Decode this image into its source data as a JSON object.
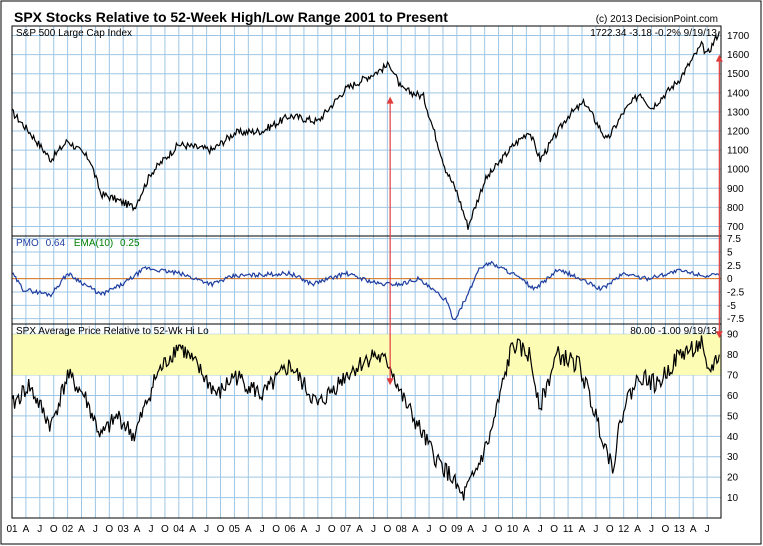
{
  "header": {
    "title": "SPX Stocks Relative to 52-Week High/Low Range 2001 to Present",
    "copyright": "(c) 2013 DecisionPoint.com"
  },
  "colors": {
    "background": "#ffffff",
    "grid": "#9ec6e4",
    "price_line": "#000000",
    "pmo_line": "#1f3fa0",
    "pmo_zero": "#e07a1a",
    "ema_label": "#008000",
    "band": "#fcfcb4",
    "arrow": "#e03c3c"
  },
  "chart_data": [
    {
      "type": "line",
      "title": "S&P 500 Large Cap Index",
      "readout": "1722.34  -3.18  -0.2%  9/19/13",
      "ylim": [
        650,
        1750
      ],
      "yticks": [
        700,
        800,
        900,
        1000,
        1100,
        1200,
        1300,
        1400,
        1500,
        1600,
        1700
      ],
      "x": [
        2001.0,
        2001.3,
        2001.7,
        2002.0,
        2002.4,
        2002.6,
        2002.8,
        2003.2,
        2003.5,
        2004.0,
        2004.6,
        2005.0,
        2005.5,
        2006.0,
        2006.5,
        2007.0,
        2007.5,
        2007.8,
        2008.0,
        2008.4,
        2008.8,
        2009.0,
        2009.2,
        2009.5,
        2010.0,
        2010.3,
        2010.5,
        2011.0,
        2011.3,
        2011.7,
        2012.0,
        2012.3,
        2012.5,
        2013.0,
        2013.4,
        2013.5,
        2013.72
      ],
      "values": [
        1300,
        1200,
        1050,
        1150,
        1050,
        870,
        850,
        800,
        980,
        1130,
        1100,
        1190,
        1200,
        1280,
        1250,
        1420,
        1500,
        1550,
        1420,
        1380,
        1000,
        880,
        700,
        940,
        1120,
        1200,
        1050,
        1280,
        1350,
        1150,
        1300,
        1400,
        1320,
        1470,
        1650,
        1600,
        1722
      ]
    },
    {
      "type": "line",
      "title": "PMO",
      "pmo_label": "PMO",
      "pmo_value": "0.64",
      "ema_label": "EMA(10)",
      "ema_value": "0.25",
      "ylim": [
        -8.5,
        8
      ],
      "yticks": [
        7.5,
        5,
        2.5,
        0,
        -2.5,
        -5,
        -7.5
      ],
      "ytick_labels": [
        "7.5",
        "5",
        "2.5",
        "0",
        "-2.5",
        "-5",
        "-7.5"
      ],
      "x": [
        2001.0,
        2001.2,
        2001.7,
        2002.0,
        2002.3,
        2002.6,
        2003.0,
        2003.4,
        2004.0,
        2004.6,
        2005.0,
        2006.0,
        2006.4,
        2007.0,
        2007.6,
        2008.0,
        2008.3,
        2008.8,
        2008.95,
        2009.2,
        2009.4,
        2009.6,
        2010.0,
        2010.4,
        2010.8,
        2011.0,
        2011.6,
        2012.0,
        2012.4,
        2013.0,
        2013.5,
        2013.72
      ],
      "values": [
        1,
        -2,
        -3,
        1,
        -1,
        -3,
        -1,
        2,
        1,
        -1,
        0.5,
        1,
        -1,
        1,
        -1,
        -1,
        0,
        -4,
        -7.8,
        -3,
        2,
        3,
        1,
        -2,
        1.5,
        1,
        -2,
        1,
        0,
        1.5,
        0.5,
        0.64
      ]
    },
    {
      "type": "line",
      "title": "SPX Average Price Relative to 52-Wk Hi Lo",
      "readout": "80.00  -1.00  9/19/13",
      "ylim": [
        0,
        95
      ],
      "yticks": [
        10,
        20,
        30,
        40,
        50,
        60,
        70,
        80,
        90
      ],
      "band": [
        70,
        90
      ],
      "x": [
        2001.0,
        2001.3,
        2001.7,
        2002.0,
        2002.3,
        2002.6,
        2002.9,
        2003.2,
        2003.6,
        2004.0,
        2004.3,
        2004.7,
        2005.0,
        2005.5,
        2006.0,
        2006.5,
        2007.0,
        2007.5,
        2007.8,
        2008.0,
        2008.3,
        2008.6,
        2008.9,
        2009.1,
        2009.3,
        2009.6,
        2010.0,
        2010.3,
        2010.5,
        2010.8,
        2011.2,
        2011.5,
        2011.8,
        2012.0,
        2012.3,
        2012.6,
        2013.0,
        2013.4,
        2013.5,
        2013.72
      ],
      "values": [
        55,
        65,
        45,
        70,
        60,
        40,
        50,
        40,
        70,
        85,
        75,
        60,
        70,
        60,
        75,
        55,
        70,
        80,
        75,
        60,
        45,
        30,
        20,
        10,
        20,
        40,
        85,
        80,
        55,
        80,
        75,
        50,
        25,
        55,
        70,
        65,
        80,
        85,
        70,
        80
      ]
    },
    {
      "type": "axis",
      "x_ticks": [
        2001.0,
        2001.25,
        2001.5,
        2001.75,
        2002.0,
        2002.25,
        2002.5,
        2002.75,
        2003.0,
        2003.25,
        2003.5,
        2003.75,
        2004.0,
        2004.25,
        2004.5,
        2004.75,
        2005.0,
        2005.25,
        2005.5,
        2005.75,
        2006.0,
        2006.25,
        2006.5,
        2006.75,
        2007.0,
        2007.25,
        2007.5,
        2007.75,
        2008.0,
        2008.25,
        2008.5,
        2008.75,
        2009.0,
        2009.25,
        2009.5,
        2009.75,
        2010.0,
        2010.25,
        2010.5,
        2010.75,
        2011.0,
        2011.25,
        2011.5,
        2011.75,
        2012.0,
        2012.25,
        2012.5,
        2012.75,
        2013.0,
        2013.25,
        2013.5
      ],
      "x_tick_labels": [
        "01",
        "A",
        "J",
        "O",
        "02",
        "A",
        "J",
        "O",
        "03",
        "A",
        "J",
        "O",
        "04",
        "A",
        "J",
        "O",
        "05",
        "A",
        "J",
        "O",
        "06",
        "A",
        "J",
        "O",
        "07",
        "A",
        "J",
        "O",
        "08",
        "A",
        "J",
        "O",
        "09",
        "A",
        "J",
        "O",
        "10",
        "A",
        "J",
        "O",
        "11",
        "A",
        "J",
        "O",
        "12",
        "A",
        "J",
        "O",
        "13",
        "A",
        "J"
      ],
      "xlim": [
        2001.0,
        2013.75
      ]
    },
    {
      "type": "annotation",
      "arrows": [
        {
          "x": 2007.8,
          "from_price": 1380,
          "to_hilo": 65
        },
        {
          "x": 2013.72,
          "from_price": 1600,
          "to_hilo": 88
        }
      ]
    }
  ]
}
